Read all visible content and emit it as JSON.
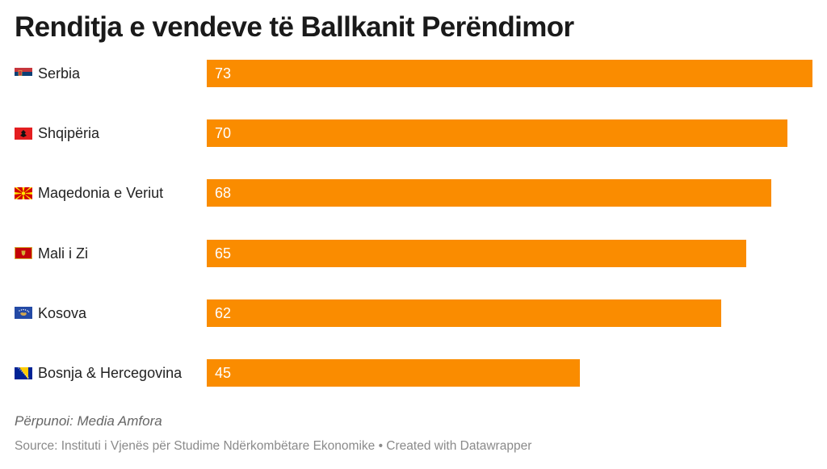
{
  "title": "Renditja e vendeve të Ballkanit Perëndimor",
  "credit": "Përpunoi: Media Amfora",
  "source": "Source: Instituti i Vjenës për Studime Ndërkombëtare Ekonomike • Created with Datawrapper",
  "colors": {
    "bar": "#fa8c00",
    "value_text": "#ffffff"
  },
  "chart_data": {
    "type": "bar",
    "orientation": "horizontal",
    "categories": [
      "Serbia",
      "Shqipëria",
      "Maqedonia e Veriut",
      "Mali i Zi",
      "Kosova",
      "Bosnja & Hercegovina"
    ],
    "flags": [
      "serbia-flag-icon",
      "albania-flag-icon",
      "north-macedonia-flag-icon",
      "montenegro-flag-icon",
      "kosovo-flag-icon",
      "bosnia-flag-icon"
    ],
    "values": [
      73,
      70,
      68,
      65,
      62,
      45
    ],
    "xlim": [
      0,
      73
    ],
    "data_labels": [
      "73",
      "70",
      "68",
      "65",
      "62",
      "45"
    ]
  }
}
